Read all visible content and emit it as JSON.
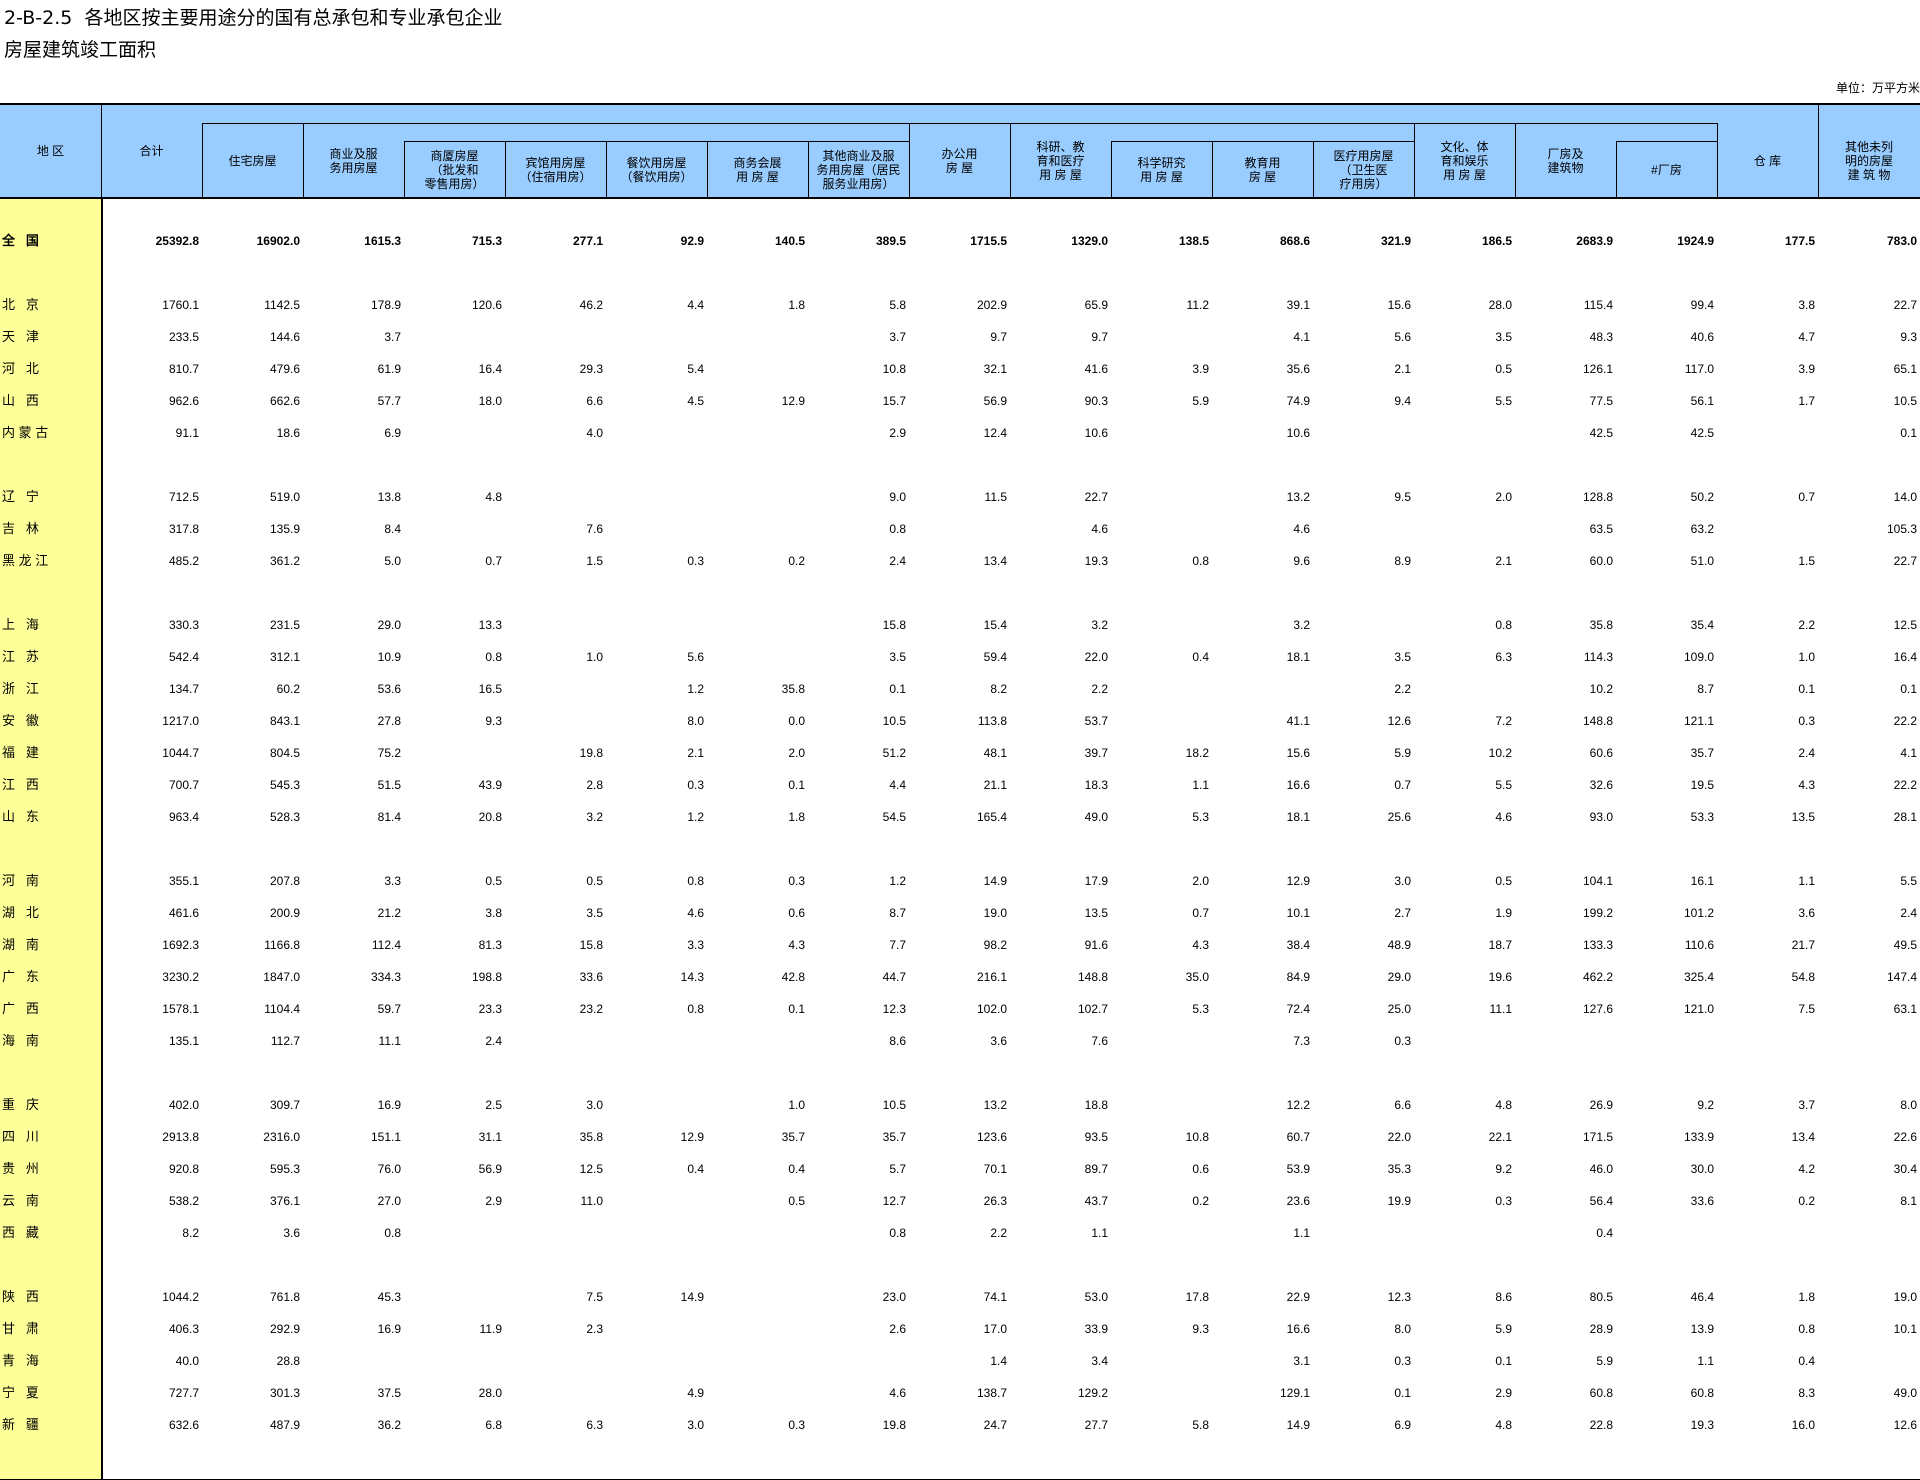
{
  "title": {
    "line1": "2-B-2.5  各地区按主要用途分的国有总承包和专业承包企业",
    "line2": "房屋建筑竣工面积"
  },
  "unit": "单位：万平方米",
  "headers": [
    {
      "label": "地    区"
    },
    {
      "label": "合计"
    },
    {
      "label": "住宅房屋"
    },
    {
      "label": "商业及服\n务用房屋"
    },
    {
      "label": "商厦房屋\n（批发和\n零售用房）"
    },
    {
      "label": "宾馆用房屋\n（住宿用房）"
    },
    {
      "label": "餐饮用房屋\n（餐饮用房）"
    },
    {
      "label": "商务会展\n用 房 屋"
    },
    {
      "label": "其他商业及服\n务用房屋（居民\n服务业用房）"
    },
    {
      "label": "办公用\n房   屋"
    },
    {
      "label": "科研、教\n育和医疗\n用 房 屋"
    },
    {
      "label": "科学研究\n用 房 屋"
    },
    {
      "label": "教育用\n房   屋"
    },
    {
      "label": "医疗用房屋\n（卫生医\n疗用房）"
    },
    {
      "label": "文化、体\n育和娱乐\n用 房 屋"
    },
    {
      "label": "厂房及\n建筑物"
    },
    {
      "label": "#厂房"
    },
    {
      "label": "仓   库"
    },
    {
      "label": "其他未列\n明的房屋\n建 筑 物"
    }
  ],
  "rows": [
    {
      "region": "全   国",
      "bold": true,
      "values": [
        "25392.8",
        "16902.0",
        "1615.3",
        "715.3",
        "277.1",
        "92.9",
        "140.5",
        "389.5",
        "1715.5",
        "1329.0",
        "138.5",
        "868.6",
        "321.9",
        "186.5",
        "2683.9",
        "1924.9",
        "177.5",
        "783.0"
      ]
    },
    {
      "region": "北   京",
      "values": [
        "1760.1",
        "1142.5",
        "178.9",
        "120.6",
        "46.2",
        "4.4",
        "1.8",
        "5.8",
        "202.9",
        "65.9",
        "11.2",
        "39.1",
        "15.6",
        "28.0",
        "115.4",
        "99.4",
        "3.8",
        "22.7"
      ]
    },
    {
      "region": "天   津",
      "values": [
        "233.5",
        "144.6",
        "3.7",
        "",
        "",
        "",
        "",
        "3.7",
        "9.7",
        "9.7",
        "",
        "4.1",
        "5.6",
        "3.5",
        "48.3",
        "40.6",
        "4.7",
        "9.3"
      ]
    },
    {
      "region": "河   北",
      "values": [
        "810.7",
        "479.6",
        "61.9",
        "16.4",
        "29.3",
        "5.4",
        "",
        "10.8",
        "32.1",
        "41.6",
        "3.9",
        "35.6",
        "2.1",
        "0.5",
        "126.1",
        "117.0",
        "3.9",
        "65.1"
      ]
    },
    {
      "region": "山   西",
      "values": [
        "962.6",
        "662.6",
        "57.7",
        "18.0",
        "6.6",
        "4.5",
        "12.9",
        "15.7",
        "56.9",
        "90.3",
        "5.9",
        "74.9",
        "9.4",
        "5.5",
        "77.5",
        "56.1",
        "1.7",
        "10.5"
      ]
    },
    {
      "region": "内 蒙 古",
      "values": [
        "91.1",
        "18.6",
        "6.9",
        "",
        "4.0",
        "",
        "",
        "2.9",
        "12.4",
        "10.6",
        "",
        "10.6",
        "",
        "",
        "42.5",
        "42.5",
        "",
        "0.1"
      ]
    },
    {
      "region": "辽   宁",
      "values": [
        "712.5",
        "519.0",
        "13.8",
        "4.8",
        "",
        "",
        "",
        "9.0",
        "11.5",
        "22.7",
        "",
        "13.2",
        "9.5",
        "2.0",
        "128.8",
        "50.2",
        "0.7",
        "14.0"
      ]
    },
    {
      "region": "吉   林",
      "values": [
        "317.8",
        "135.9",
        "8.4",
        "",
        "7.6",
        "",
        "",
        "0.8",
        "",
        "4.6",
        "",
        "4.6",
        "",
        "",
        "63.5",
        "63.2",
        "",
        "105.3"
      ]
    },
    {
      "region": "黑 龙 江",
      "values": [
        "485.2",
        "361.2",
        "5.0",
        "0.7",
        "1.5",
        "0.3",
        "0.2",
        "2.4",
        "13.4",
        "19.3",
        "0.8",
        "9.6",
        "8.9",
        "2.1",
        "60.0",
        "51.0",
        "1.5",
        "22.7"
      ]
    },
    {
      "region": "上   海",
      "values": [
        "330.3",
        "231.5",
        "29.0",
        "13.3",
        "",
        "",
        "",
        "15.8",
        "15.4",
        "3.2",
        "",
        "3.2",
        "",
        "0.8",
        "35.8",
        "35.4",
        "2.2",
        "12.5"
      ]
    },
    {
      "region": "江   苏",
      "values": [
        "542.4",
        "312.1",
        "10.9",
        "0.8",
        "1.0",
        "5.6",
        "",
        "3.5",
        "59.4",
        "22.0",
        "0.4",
        "18.1",
        "3.5",
        "6.3",
        "114.3",
        "109.0",
        "1.0",
        "16.4"
      ]
    },
    {
      "region": "浙   江",
      "values": [
        "134.7",
        "60.2",
        "53.6",
        "16.5",
        "",
        "1.2",
        "35.8",
        "0.1",
        "8.2",
        "2.2",
        "",
        "",
        "2.2",
        "",
        "10.2",
        "8.7",
        "0.1",
        "0.1"
      ]
    },
    {
      "region": "安   徽",
      "values": [
        "1217.0",
        "843.1",
        "27.8",
        "9.3",
        "",
        "8.0",
        "0.0",
        "10.5",
        "113.8",
        "53.7",
        "",
        "41.1",
        "12.6",
        "7.2",
        "148.8",
        "121.1",
        "0.3",
        "22.2"
      ]
    },
    {
      "region": "福   建",
      "values": [
        "1044.7",
        "804.5",
        "75.2",
        "",
        "19.8",
        "2.1",
        "2.0",
        "51.2",
        "48.1",
        "39.7",
        "18.2",
        "15.6",
        "5.9",
        "10.2",
        "60.6",
        "35.7",
        "2.4",
        "4.1"
      ]
    },
    {
      "region": "江   西",
      "values": [
        "700.7",
        "545.3",
        "51.5",
        "43.9",
        "2.8",
        "0.3",
        "0.1",
        "4.4",
        "21.1",
        "18.3",
        "1.1",
        "16.6",
        "0.7",
        "5.5",
        "32.6",
        "19.5",
        "4.3",
        "22.2"
      ]
    },
    {
      "region": "山   东",
      "values": [
        "963.4",
        "528.3",
        "81.4",
        "20.8",
        "3.2",
        "1.2",
        "1.8",
        "54.5",
        "165.4",
        "49.0",
        "5.3",
        "18.1",
        "25.6",
        "4.6",
        "93.0",
        "53.3",
        "13.5",
        "28.1"
      ]
    },
    {
      "region": "河   南",
      "values": [
        "355.1",
        "207.8",
        "3.3",
        "0.5",
        "0.5",
        "0.8",
        "0.3",
        "1.2",
        "14.9",
        "17.9",
        "2.0",
        "12.9",
        "3.0",
        "0.5",
        "104.1",
        "16.1",
        "1.1",
        "5.5"
      ]
    },
    {
      "region": "湖   北",
      "values": [
        "461.6",
        "200.9",
        "21.2",
        "3.8",
        "3.5",
        "4.6",
        "0.6",
        "8.7",
        "19.0",
        "13.5",
        "0.7",
        "10.1",
        "2.7",
        "1.9",
        "199.2",
        "101.2",
        "3.6",
        "2.4"
      ]
    },
    {
      "region": "湖   南",
      "values": [
        "1692.3",
        "1166.8",
        "112.4",
        "81.3",
        "15.8",
        "3.3",
        "4.3",
        "7.7",
        "98.2",
        "91.6",
        "4.3",
        "38.4",
        "48.9",
        "18.7",
        "133.3",
        "110.6",
        "21.7",
        "49.5"
      ]
    },
    {
      "region": "广   东",
      "values": [
        "3230.2",
        "1847.0",
        "334.3",
        "198.8",
        "33.6",
        "14.3",
        "42.8",
        "44.7",
        "216.1",
        "148.8",
        "35.0",
        "84.9",
        "29.0",
        "19.6",
        "462.2",
        "325.4",
        "54.8",
        "147.4"
      ]
    },
    {
      "region": "广   西",
      "values": [
        "1578.1",
        "1104.4",
        "59.7",
        "23.3",
        "23.2",
        "0.8",
        "0.1",
        "12.3",
        "102.0",
        "102.7",
        "5.3",
        "72.4",
        "25.0",
        "11.1",
        "127.6",
        "121.0",
        "7.5",
        "63.1"
      ]
    },
    {
      "region": "海   南",
      "values": [
        "135.1",
        "112.7",
        "11.1",
        "2.4",
        "",
        "",
        "",
        "8.6",
        "3.6",
        "7.6",
        "",
        "7.3",
        "0.3",
        "",
        "",
        "",
        "",
        ""
      ]
    },
    {
      "region": "重   庆",
      "values": [
        "402.0",
        "309.7",
        "16.9",
        "2.5",
        "3.0",
        "",
        "1.0",
        "10.5",
        "13.2",
        "18.8",
        "",
        "12.2",
        "6.6",
        "4.8",
        "26.9",
        "9.2",
        "3.7",
        "8.0"
      ]
    },
    {
      "region": "四   川",
      "values": [
        "2913.8",
        "2316.0",
        "151.1",
        "31.1",
        "35.8",
        "12.9",
        "35.7",
        "35.7",
        "123.6",
        "93.5",
        "10.8",
        "60.7",
        "22.0",
        "22.1",
        "171.5",
        "133.9",
        "13.4",
        "22.6"
      ]
    },
    {
      "region": "贵   州",
      "values": [
        "920.8",
        "595.3",
        "76.0",
        "56.9",
        "12.5",
        "0.4",
        "0.4",
        "5.7",
        "70.1",
        "89.7",
        "0.6",
        "53.9",
        "35.3",
        "9.2",
        "46.0",
        "30.0",
        "4.2",
        "30.4"
      ]
    },
    {
      "region": "云   南",
      "values": [
        "538.2",
        "376.1",
        "27.0",
        "2.9",
        "11.0",
        "",
        "0.5",
        "12.7",
        "26.3",
        "43.7",
        "0.2",
        "23.6",
        "19.9",
        "0.3",
        "56.4",
        "33.6",
        "0.2",
        "8.1"
      ]
    },
    {
      "region": "西   藏",
      "values": [
        "8.2",
        "3.6",
        "0.8",
        "",
        "",
        "",
        "",
        "0.8",
        "2.2",
        "1.1",
        "",
        "1.1",
        "",
        "",
        "0.4",
        "",
        "",
        ""
      ]
    },
    {
      "region": "陕   西",
      "values": [
        "1044.2",
        "761.8",
        "45.3",
        "",
        "7.5",
        "14.9",
        "",
        "23.0",
        "74.1",
        "53.0",
        "17.8",
        "22.9",
        "12.3",
        "8.6",
        "80.5",
        "46.4",
        "1.8",
        "19.0"
      ]
    },
    {
      "region": "甘   肃",
      "values": [
        "406.3",
        "292.9",
        "16.9",
        "11.9",
        "2.3",
        "",
        "",
        "2.6",
        "17.0",
        "33.9",
        "9.3",
        "16.6",
        "8.0",
        "5.9",
        "28.9",
        "13.9",
        "0.8",
        "10.1"
      ]
    },
    {
      "region": "青   海",
      "values": [
        "40.0",
        "28.8",
        "",
        "",
        "",
        "",
        "",
        "",
        "1.4",
        "3.4",
        "",
        "3.1",
        "0.3",
        "0.1",
        "5.9",
        "1.1",
        "0.4",
        ""
      ]
    },
    {
      "region": "宁   夏",
      "values": [
        "727.7",
        "301.3",
        "37.5",
        "28.0",
        "",
        "4.9",
        "",
        "4.6",
        "138.7",
        "129.2",
        "",
        "129.1",
        "0.1",
        "2.9",
        "60.8",
        "60.8",
        "8.3",
        "49.0"
      ]
    },
    {
      "region": "新   疆",
      "values": [
        "632.6",
        "487.9",
        "36.2",
        "6.8",
        "6.3",
        "3.0",
        "0.3",
        "19.8",
        "24.7",
        "27.7",
        "5.8",
        "14.9",
        "6.9",
        "4.8",
        "22.8",
        "19.3",
        "16.0",
        "12.6"
      ]
    }
  ]
}
